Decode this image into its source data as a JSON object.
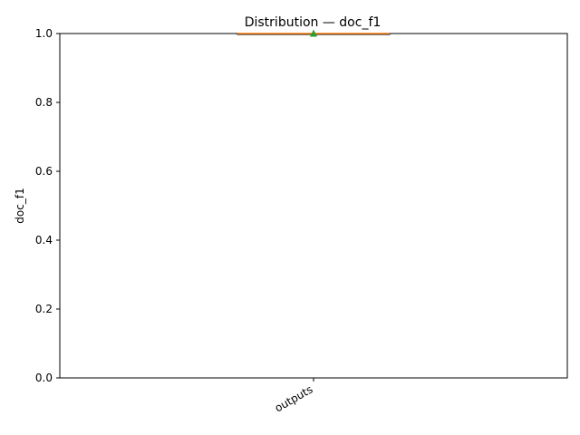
{
  "chart_data": {
    "type": "box",
    "title": "Distribution — doc_f1",
    "xlabel": "",
    "ylabel": "doc_f1",
    "categories": [
      "outputs"
    ],
    "ylim": [
      0,
      1
    ],
    "yticks": [
      "0.0",
      "0.2",
      "0.4",
      "0.6",
      "0.8",
      "1.0"
    ],
    "boxes": [
      {
        "category": "outputs",
        "min": 1.0,
        "q1": 1.0,
        "median": 1.0,
        "q3": 1.0,
        "max": 1.0,
        "mean": 1.0
      }
    ],
    "grid": false,
    "colors": {
      "box": "#000000",
      "median": "#ff7f0e",
      "mean_marker": "#2ca02c",
      "axis": "#000000"
    }
  }
}
